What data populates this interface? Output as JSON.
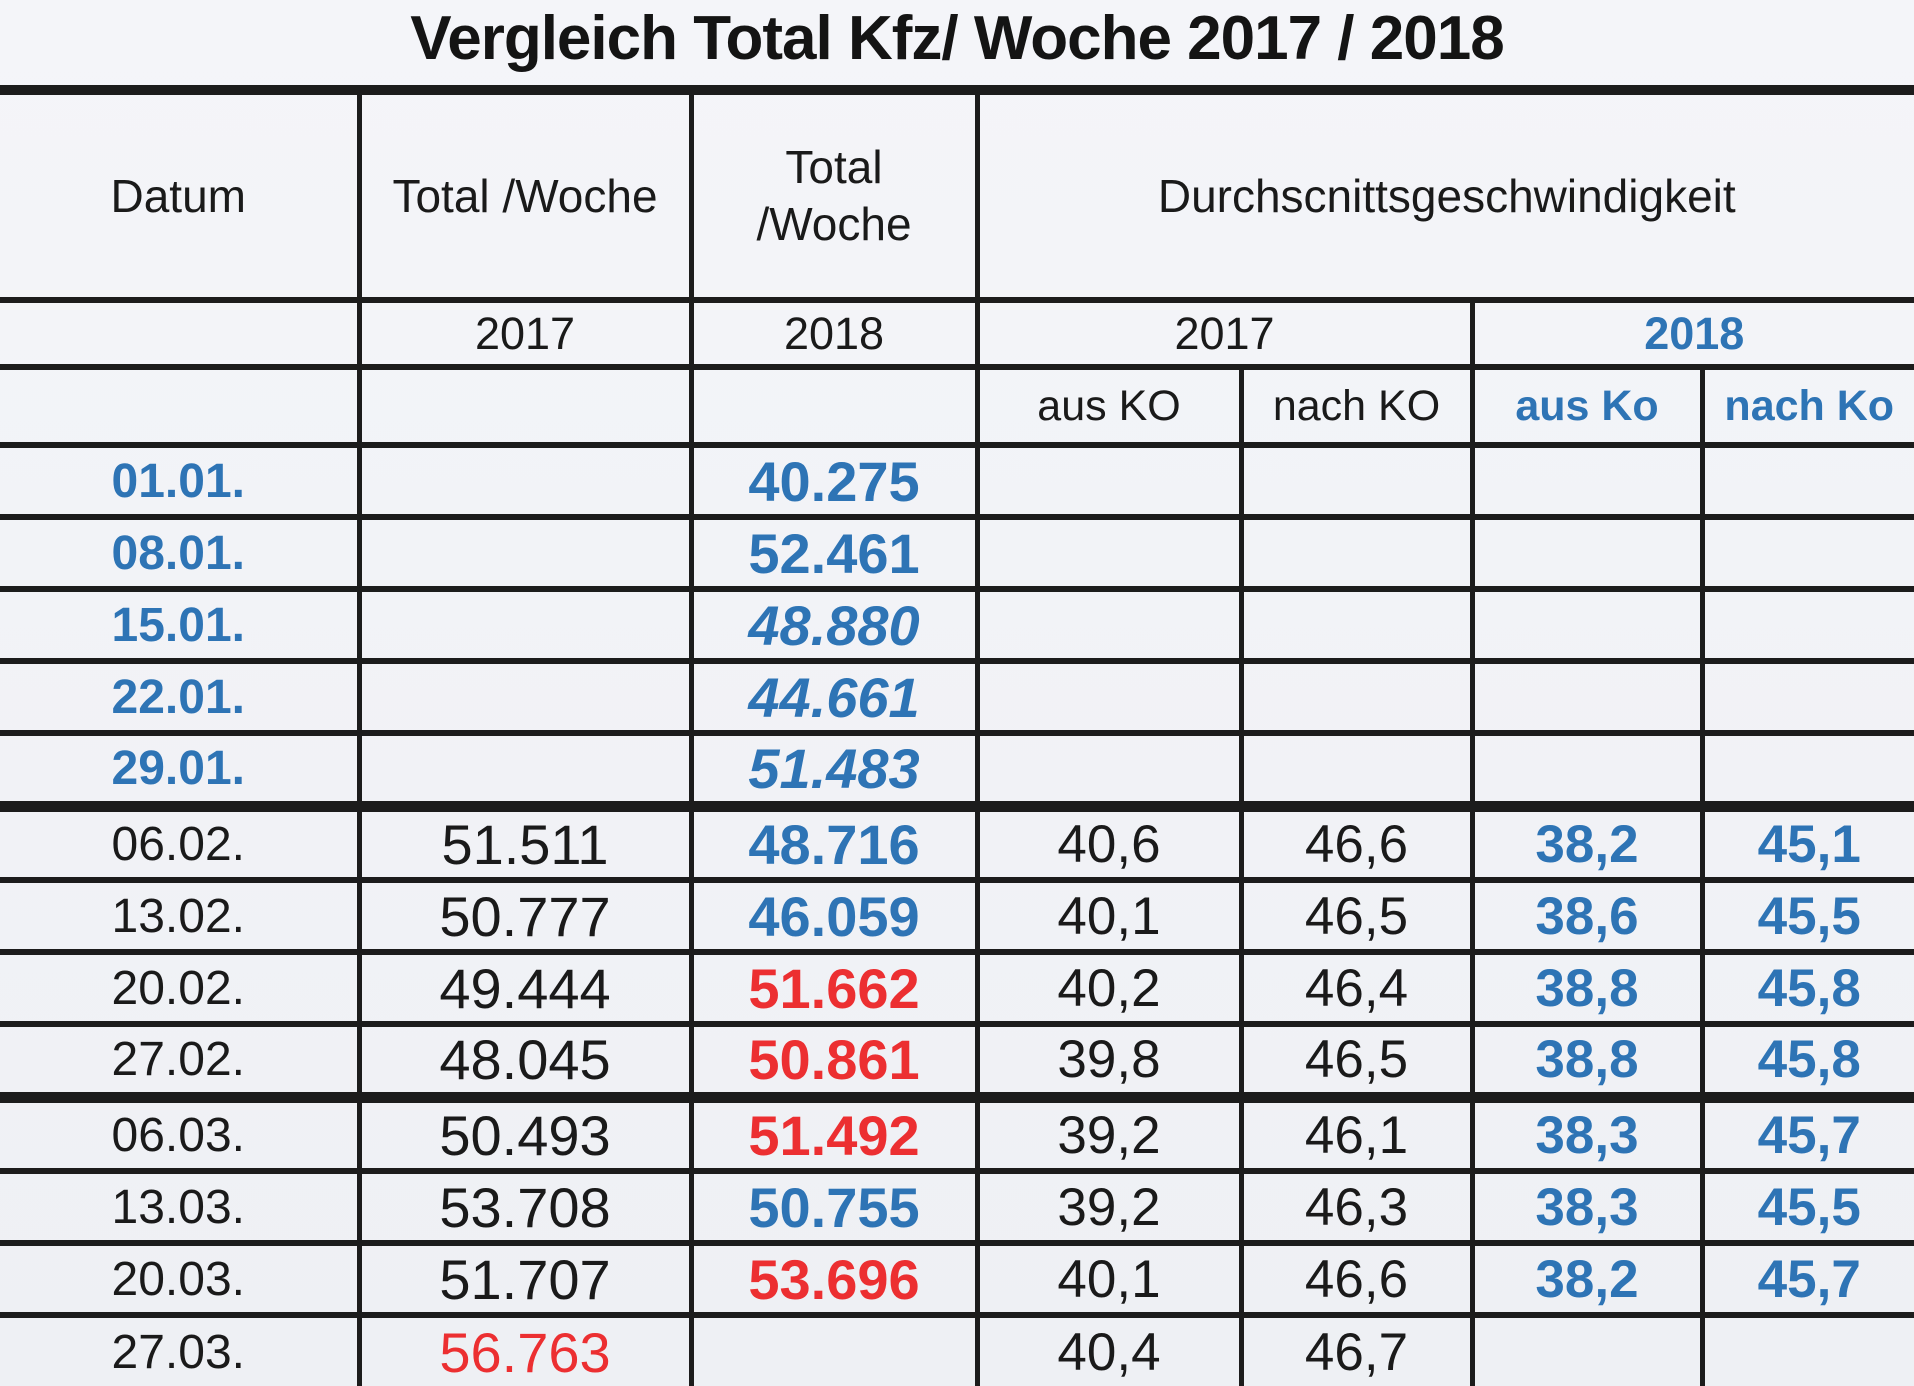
{
  "title": "Vergleich Total Kfz/ Woche 2017 / 2018",
  "colors": {
    "blue": "#2E74B5",
    "red": "#EC2F31",
    "ink": "#1a1a1a",
    "paper": "#f2f3f7"
  },
  "table": {
    "header": {
      "datum": "Datum",
      "total_woche_2017": "Total /Woche",
      "total_woche_2018_line1": "Total",
      "total_woche_2018_line2": "/Woche",
      "speed_title": "Durchscnittsgeschwindigkeit",
      "year_total_2017": "2017",
      "year_total_2018": "2018",
      "year_speed_2017": "2017",
      "year_speed_2018": "2018",
      "aus_ko_2017": "aus KO",
      "nach_ko_2017": "nach KO",
      "aus_ko_2018": "aus Ko",
      "nach_ko_2018": "nach Ko"
    },
    "rows": [
      {
        "date": "01.01.",
        "date_style": "blue",
        "total_2017": "",
        "t17_style": "black",
        "total_2018": "40.275",
        "t18_style": "blue",
        "v2017_aus": "",
        "v2017_nach": "",
        "v2018_aus": "",
        "v2018_nach": "",
        "thick_bottom": false
      },
      {
        "date": "08.01.",
        "date_style": "blue",
        "total_2017": "",
        "t17_style": "black",
        "total_2018": "52.461",
        "t18_style": "blue",
        "v2017_aus": "",
        "v2017_nach": "",
        "v2018_aus": "",
        "v2018_nach": "",
        "thick_bottom": false
      },
      {
        "date": "15.01.",
        "date_style": "blue",
        "total_2017": "",
        "t17_style": "black",
        "total_2018": "48.880",
        "t18_style": "blue-italic",
        "v2017_aus": "",
        "v2017_nach": "",
        "v2018_aus": "",
        "v2018_nach": "",
        "thick_bottom": false
      },
      {
        "date": "22.01.",
        "date_style": "blue",
        "total_2017": "",
        "t17_style": "black",
        "total_2018": "44.661",
        "t18_style": "blue-italic",
        "v2017_aus": "",
        "v2017_nach": "",
        "v2018_aus": "",
        "v2018_nach": "",
        "thick_bottom": false
      },
      {
        "date": "29.01.",
        "date_style": "blue",
        "total_2017": "",
        "t17_style": "black",
        "total_2018": "51.483",
        "t18_style": "blue-italic",
        "v2017_aus": "",
        "v2017_nach": "",
        "v2018_aus": "",
        "v2018_nach": "",
        "thick_bottom": true
      },
      {
        "date": "06.02.",
        "date_style": "black",
        "total_2017": "51.511",
        "t17_style": "black",
        "total_2018": "48.716",
        "t18_style": "blue",
        "v2017_aus": "40,6",
        "v2017_nach": "46,6",
        "v2018_aus": "38,2",
        "v2018_nach": "45,1",
        "thick_bottom": false
      },
      {
        "date": "13.02.",
        "date_style": "black",
        "total_2017": "50.777",
        "t17_style": "black",
        "total_2018": "46.059",
        "t18_style": "blue",
        "v2017_aus": "40,1",
        "v2017_nach": "46,5",
        "v2018_aus": "38,6",
        "v2018_nach": "45,5",
        "thick_bottom": false
      },
      {
        "date": "20.02.",
        "date_style": "black",
        "total_2017": "49.444",
        "t17_style": "black",
        "total_2018": "51.662",
        "t18_style": "red",
        "v2017_aus": "40,2",
        "v2017_nach": "46,4",
        "v2018_aus": "38,8",
        "v2018_nach": "45,8",
        "thick_bottom": false
      },
      {
        "date": "27.02.",
        "date_style": "black",
        "total_2017": "48.045",
        "t17_style": "black",
        "total_2018": "50.861",
        "t18_style": "red",
        "v2017_aus": "39,8",
        "v2017_nach": "46,5",
        "v2018_aus": "38,8",
        "v2018_nach": "45,8",
        "thick_bottom": true
      },
      {
        "date": "06.03.",
        "date_style": "black",
        "total_2017": "50.493",
        "t17_style": "black",
        "total_2018": "51.492",
        "t18_style": "red",
        "v2017_aus": "39,2",
        "v2017_nach": "46,1",
        "v2018_aus": "38,3",
        "v2018_nach": "45,7",
        "thick_bottom": false
      },
      {
        "date": "13.03.",
        "date_style": "black",
        "total_2017": "53.708",
        "t17_style": "black",
        "total_2018": "50.755",
        "t18_style": "blue",
        "v2017_aus": "39,2",
        "v2017_nach": "46,3",
        "v2018_aus": "38,3",
        "v2018_nach": "45,5",
        "thick_bottom": false
      },
      {
        "date": "20.03.",
        "date_style": "black",
        "total_2017": "51.707",
        "t17_style": "black",
        "total_2018": "53.696",
        "t18_style": "red",
        "v2017_aus": "40,1",
        "v2017_nach": "46,6",
        "v2018_aus": "38,2",
        "v2018_nach": "45,7",
        "thick_bottom": false
      },
      {
        "date": "27.03.",
        "date_style": "black",
        "total_2017": "56.763",
        "t17_style": "red-plain",
        "total_2018": "",
        "t18_style": "blue",
        "v2017_aus": "40,4",
        "v2017_nach": "46,7",
        "v2018_aus": "",
        "v2018_nach": "",
        "thick_bottom": false
      }
    ]
  }
}
